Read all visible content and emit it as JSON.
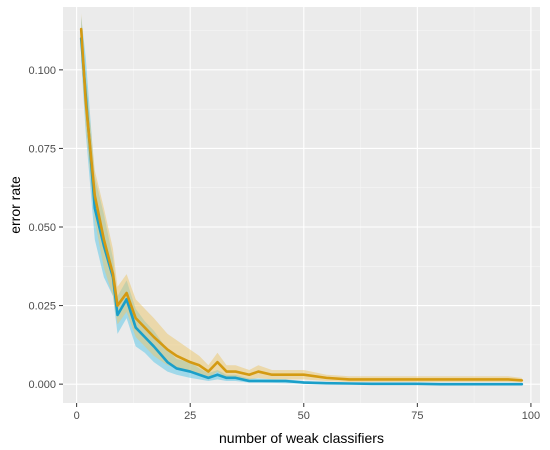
{
  "chart_data": {
    "type": "line",
    "title": "",
    "xlabel": "number of weak classifiers",
    "ylabel": "error rate",
    "xlim": [
      -3,
      102
    ],
    "ylim": [
      -0.006,
      0.12
    ],
    "x_ticks": [
      0,
      25,
      50,
      75,
      100
    ],
    "y_ticks": [
      0.0,
      0.025,
      0.05,
      0.075,
      0.1
    ],
    "x_tick_labels": [
      "0",
      "25",
      "50",
      "75",
      "100"
    ],
    "y_tick_labels": [
      "0.000",
      "0.025",
      "0.050",
      "0.075",
      "0.100"
    ],
    "grid": true,
    "legend": "none",
    "colors": {
      "panel_background": "#ebebeb",
      "grid_major": "#ffffff",
      "grid_minor": "#f5f5f5"
    },
    "series": [
      {
        "color": "#1a9fc9",
        "band_color": "#56c5e8",
        "x": [
          1,
          2,
          4,
          6,
          8,
          9,
          11,
          13,
          15,
          17,
          20,
          22,
          25,
          27,
          29,
          31,
          33,
          35,
          38,
          40,
          43,
          46,
          50,
          55,
          60,
          65,
          70,
          75,
          80,
          85,
          90,
          95,
          98
        ],
        "y": [
          0.11,
          0.092,
          0.056,
          0.044,
          0.034,
          0.022,
          0.027,
          0.018,
          0.015,
          0.012,
          0.007,
          0.005,
          0.004,
          0.003,
          0.002,
          0.003,
          0.002,
          0.002,
          0.001,
          0.001,
          0.001,
          0.001,
          0.0005,
          0.0003,
          0.0002,
          0.0001,
          0.0001,
          0.0001,
          0.0,
          0.0,
          0.0,
          0.0,
          0.0
        ],
        "lower": [
          0.103,
          0.08,
          0.046,
          0.034,
          0.028,
          0.016,
          0.021,
          0.012,
          0.01,
          0.007,
          0.004,
          0.003,
          0.002,
          0.0015,
          0.001,
          0.0015,
          0.001,
          0.001,
          0.0005,
          0.0005,
          0.0004,
          0.0003,
          0.0002,
          0.0001,
          0.0,
          0.0,
          0.0,
          0.0,
          0.0,
          0.0,
          0.0,
          0.0,
          0.0
        ],
        "upper": [
          0.117,
          0.104,
          0.066,
          0.054,
          0.04,
          0.028,
          0.033,
          0.024,
          0.02,
          0.017,
          0.011,
          0.008,
          0.007,
          0.005,
          0.0035,
          0.0045,
          0.003,
          0.003,
          0.0018,
          0.0018,
          0.0016,
          0.0015,
          0.001,
          0.0007,
          0.0005,
          0.0004,
          0.0003,
          0.0003,
          0.0002,
          0.0002,
          0.0002,
          0.0002,
          0.0002
        ]
      },
      {
        "color": "#d49a12",
        "band_color": "#ecc56a",
        "x": [
          1,
          2,
          4,
          6,
          8,
          9,
          11,
          13,
          15,
          17,
          20,
          22,
          25,
          27,
          29,
          31,
          33,
          35,
          38,
          40,
          43,
          46,
          50,
          55,
          60,
          65,
          70,
          75,
          80,
          85,
          90,
          95,
          98
        ],
        "y": [
          0.113,
          0.09,
          0.06,
          0.046,
          0.035,
          0.025,
          0.029,
          0.021,
          0.018,
          0.015,
          0.011,
          0.009,
          0.007,
          0.006,
          0.004,
          0.007,
          0.004,
          0.004,
          0.003,
          0.004,
          0.003,
          0.003,
          0.003,
          0.002,
          0.0015,
          0.0015,
          0.0015,
          0.0015,
          0.0015,
          0.0015,
          0.0015,
          0.0015,
          0.0012
        ],
        "lower": [
          0.108,
          0.082,
          0.052,
          0.037,
          0.028,
          0.019,
          0.023,
          0.015,
          0.012,
          0.009,
          0.006,
          0.005,
          0.004,
          0.003,
          0.002,
          0.004,
          0.002,
          0.002,
          0.0015,
          0.002,
          0.0015,
          0.0015,
          0.0015,
          0.001,
          0.0007,
          0.0007,
          0.0007,
          0.0007,
          0.0007,
          0.0007,
          0.0007,
          0.0007,
          0.0006
        ],
        "upper": [
          0.118,
          0.098,
          0.068,
          0.056,
          0.043,
          0.031,
          0.035,
          0.027,
          0.024,
          0.021,
          0.016,
          0.014,
          0.011,
          0.009,
          0.006,
          0.01,
          0.006,
          0.006,
          0.0045,
          0.006,
          0.0045,
          0.0045,
          0.0045,
          0.003,
          0.0025,
          0.0025,
          0.0025,
          0.0025,
          0.0025,
          0.0025,
          0.0025,
          0.0025,
          0.002
        ]
      }
    ]
  }
}
